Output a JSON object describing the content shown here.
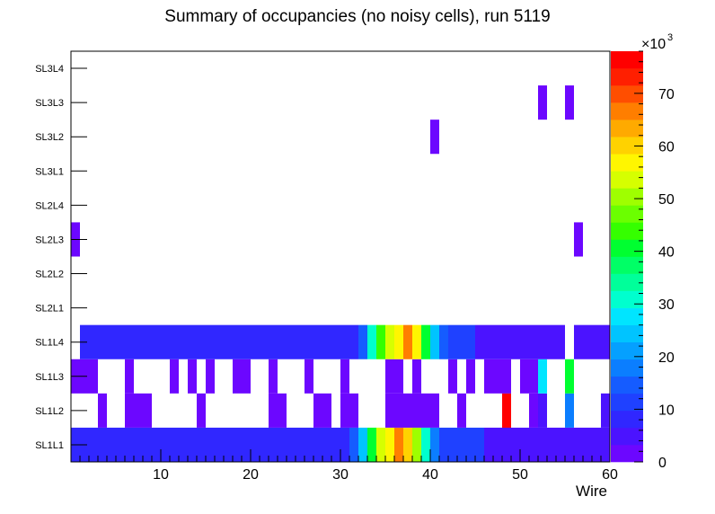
{
  "chart_data": {
    "type": "heatmap",
    "title": "Summary of occupancies (no noisy cells), run 5119",
    "xlabel": "Wire",
    "ylabel": "",
    "xlim": [
      0,
      60
    ],
    "x_ticks": [
      10,
      20,
      30,
      40,
      50,
      60
    ],
    "y_categories": [
      "SL1L1",
      "SL1L2",
      "SL1L3",
      "SL1L4",
      "SL2L1",
      "SL2L2",
      "SL2L3",
      "SL2L4",
      "SL3L1",
      "SL3L2",
      "SL3L3",
      "SL3L4"
    ],
    "z_range": [
      0,
      78000
    ],
    "z_multiplier_label": "×10",
    "z_multiplier_exponent": "3",
    "z_ticks": [
      0,
      10,
      20,
      30,
      40,
      50,
      60,
      70
    ],
    "palette": [
      "#6c07ff",
      "#4b13ff",
      "#3027ff",
      "#1f41ff",
      "#155cff",
      "#0b7eff",
      "#05a0ff",
      "#00c4ff",
      "#00e5ff",
      "#00ffce",
      "#00ff9a",
      "#00ff66",
      "#00ff30",
      "#35ff00",
      "#6bff00",
      "#9fff00",
      "#d6ff00",
      "#fff600",
      "#ffd200",
      "#ffaa00",
      "#ff7e00",
      "#ff4e00",
      "#ff1f00",
      "#ff0000"
    ],
    "rows": [
      {
        "name": "SL1L1",
        "cells": [
          [
            1,
            15,
            9000
          ],
          [
            16,
            16,
            7000
          ],
          [
            17,
            31,
            9000
          ],
          [
            32,
            32,
            16000
          ],
          [
            33,
            33,
            25000
          ],
          [
            34,
            34,
            40000
          ],
          [
            35,
            35,
            53000
          ],
          [
            36,
            36,
            58000
          ],
          [
            37,
            37,
            66000
          ],
          [
            38,
            38,
            60000
          ],
          [
            39,
            39,
            50000
          ],
          [
            40,
            40,
            30000
          ],
          [
            41,
            41,
            17000
          ],
          [
            42,
            46,
            10000
          ],
          [
            47,
            60,
            6000
          ]
        ]
      },
      {
        "name": "SL1L2",
        "cells": [
          [
            4,
            4,
            1000
          ],
          [
            7,
            9,
            1000
          ],
          [
            15,
            15,
            1000
          ],
          [
            23,
            24,
            1000
          ],
          [
            28,
            29,
            1000
          ],
          [
            31,
            32,
            1000
          ],
          [
            36,
            41,
            1000
          ],
          [
            44,
            44,
            1000
          ],
          [
            49,
            49,
            1000
          ],
          [
            49,
            49,
            78000
          ],
          [
            52,
            52,
            1000
          ],
          [
            53,
            53,
            4000
          ],
          [
            56,
            56,
            18000
          ],
          [
            60,
            60,
            5000
          ]
        ]
      },
      {
        "name": "SL1L3",
        "cells": [
          [
            1,
            3,
            1000
          ],
          [
            7,
            7,
            1000
          ],
          [
            12,
            12,
            1000
          ],
          [
            14,
            14,
            1000
          ],
          [
            16,
            16,
            1000
          ],
          [
            19,
            20,
            1000
          ],
          [
            23,
            23,
            1000
          ],
          [
            27,
            27,
            1000
          ],
          [
            31,
            31,
            1000
          ],
          [
            36,
            37,
            1000
          ],
          [
            39,
            39,
            1000
          ],
          [
            43,
            43,
            1000
          ],
          [
            45,
            45,
            1000
          ],
          [
            47,
            49,
            1000
          ],
          [
            51,
            52,
            1000
          ],
          [
            53,
            53,
            28000
          ],
          [
            56,
            56,
            40000
          ]
        ]
      },
      {
        "name": "SL1L4",
        "cells": [
          [
            2,
            10,
            9000
          ],
          [
            11,
            20,
            7000
          ],
          [
            21,
            32,
            9000
          ],
          [
            33,
            33,
            16000
          ],
          [
            34,
            34,
            30000
          ],
          [
            35,
            35,
            45000
          ],
          [
            36,
            36,
            55000
          ],
          [
            37,
            37,
            57000
          ],
          [
            38,
            38,
            66000
          ],
          [
            39,
            39,
            56000
          ],
          [
            40,
            40,
            42000
          ],
          [
            41,
            41,
            25000
          ],
          [
            42,
            42,
            16000
          ],
          [
            43,
            45,
            10000
          ],
          [
            46,
            55,
            5000
          ],
          [
            57,
            60,
            5000
          ]
        ]
      },
      {
        "name": "SL2L1",
        "cells": []
      },
      {
        "name": "SL2L2",
        "cells": []
      },
      {
        "name": "SL2L3",
        "cells": [
          [
            1,
            1,
            1000
          ],
          [
            57,
            57,
            1000
          ]
        ]
      },
      {
        "name": "SL2L4",
        "cells": []
      },
      {
        "name": "SL3L1",
        "cells": []
      },
      {
        "name": "SL3L2",
        "cells": [
          [
            41,
            41,
            1000
          ]
        ]
      },
      {
        "name": "SL3L3",
        "cells": [
          [
            53,
            53,
            1000
          ],
          [
            56,
            56,
            1000
          ]
        ]
      },
      {
        "name": "SL3L4",
        "cells": []
      }
    ]
  }
}
